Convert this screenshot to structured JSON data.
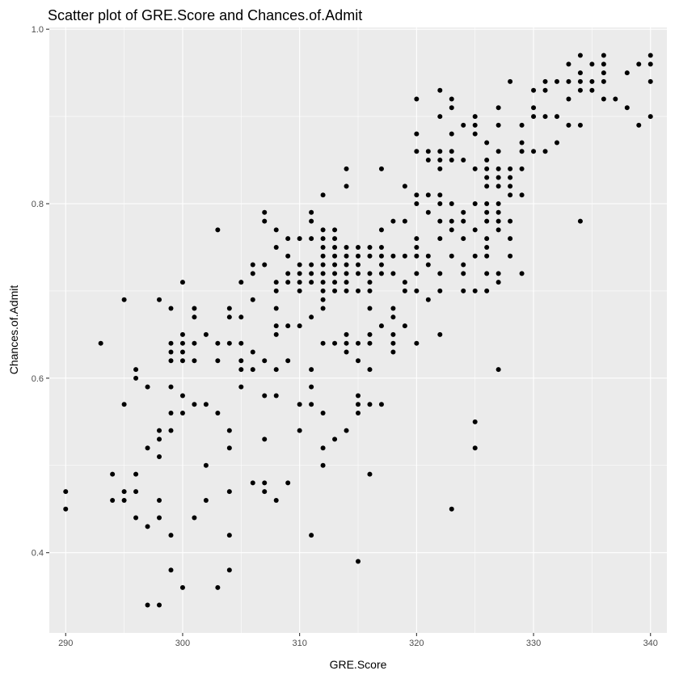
{
  "chart_data": {
    "type": "scatter",
    "title": "Scatter plot of GRE.Score and Chances.of.Admit",
    "xlabel": "GRE.Score",
    "ylabel": "Chances.of.Admit",
    "xlim": [
      288.6,
      341.4
    ],
    "ylim": [
      0.308,
      1.002
    ],
    "x_ticks": [
      290,
      300,
      310,
      320,
      330,
      340
    ],
    "x_tick_labels": [
      "290",
      "300",
      "310",
      "320",
      "330",
      "340"
    ],
    "y_ticks": [
      0.4,
      0.6,
      0.8,
      1.0
    ],
    "y_tick_labels": [
      "0.4",
      "0.6",
      "0.8",
      "1.0"
    ],
    "grid": true,
    "colors": {
      "panel": "#ebebeb",
      "grid": "#ffffff",
      "point": "#000000",
      "axis_text": "#4d4d4d"
    },
    "points": [
      [
        290,
        0.47
      ],
      [
        290,
        0.45
      ],
      [
        293,
        0.64
      ],
      [
        294,
        0.49
      ],
      [
        294,
        0.46
      ],
      [
        295,
        0.69
      ],
      [
        295,
        0.57
      ],
      [
        295,
        0.47
      ],
      [
        295,
        0.46
      ],
      [
        296,
        0.61
      ],
      [
        296,
        0.6
      ],
      [
        296,
        0.49
      ],
      [
        296,
        0.47
      ],
      [
        296,
        0.44
      ],
      [
        297,
        0.59
      ],
      [
        297,
        0.52
      ],
      [
        297,
        0.43
      ],
      [
        297,
        0.34
      ],
      [
        298,
        0.69
      ],
      [
        298,
        0.54
      ],
      [
        298,
        0.53
      ],
      [
        298,
        0.51
      ],
      [
        298,
        0.46
      ],
      [
        298,
        0.44
      ],
      [
        298,
        0.34
      ],
      [
        299,
        0.68
      ],
      [
        299,
        0.64
      ],
      [
        299,
        0.63
      ],
      [
        299,
        0.62
      ],
      [
        299,
        0.59
      ],
      [
        299,
        0.56
      ],
      [
        299,
        0.54
      ],
      [
        299,
        0.42
      ],
      [
        299,
        0.38
      ],
      [
        300,
        0.71
      ],
      [
        300,
        0.65
      ],
      [
        300,
        0.64
      ],
      [
        300,
        0.63
      ],
      [
        300,
        0.62
      ],
      [
        300,
        0.58
      ],
      [
        300,
        0.56
      ],
      [
        300,
        0.36
      ],
      [
        301,
        0.68
      ],
      [
        301,
        0.67
      ],
      [
        301,
        0.64
      ],
      [
        301,
        0.62
      ],
      [
        301,
        0.57
      ],
      [
        301,
        0.44
      ],
      [
        302,
        0.65
      ],
      [
        302,
        0.57
      ],
      [
        302,
        0.5
      ],
      [
        302,
        0.46
      ],
      [
        303,
        0.77
      ],
      [
        303,
        0.64
      ],
      [
        303,
        0.62
      ],
      [
        303,
        0.56
      ],
      [
        303,
        0.36
      ],
      [
        304,
        0.68
      ],
      [
        304,
        0.67
      ],
      [
        304,
        0.64
      ],
      [
        304,
        0.54
      ],
      [
        304,
        0.52
      ],
      [
        304,
        0.47
      ],
      [
        304,
        0.42
      ],
      [
        304,
        0.38
      ],
      [
        305,
        0.71
      ],
      [
        305,
        0.67
      ],
      [
        305,
        0.64
      ],
      [
        305,
        0.62
      ],
      [
        305,
        0.61
      ],
      [
        305,
        0.59
      ],
      [
        306,
        0.73
      ],
      [
        306,
        0.72
      ],
      [
        306,
        0.69
      ],
      [
        306,
        0.63
      ],
      [
        306,
        0.61
      ],
      [
        306,
        0.48
      ],
      [
        307,
        0.79
      ],
      [
        307,
        0.78
      ],
      [
        307,
        0.73
      ],
      [
        307,
        0.62
      ],
      [
        307,
        0.58
      ],
      [
        307,
        0.53
      ],
      [
        307,
        0.48
      ],
      [
        307,
        0.47
      ],
      [
        308,
        0.77
      ],
      [
        308,
        0.75
      ],
      [
        308,
        0.71
      ],
      [
        308,
        0.7
      ],
      [
        308,
        0.68
      ],
      [
        308,
        0.66
      ],
      [
        308,
        0.65
      ],
      [
        308,
        0.61
      ],
      [
        308,
        0.58
      ],
      [
        308,
        0.46
      ],
      [
        309,
        0.76
      ],
      [
        309,
        0.74
      ],
      [
        309,
        0.72
      ],
      [
        309,
        0.71
      ],
      [
        309,
        0.66
      ],
      [
        309,
        0.62
      ],
      [
        309,
        0.48
      ],
      [
        310,
        0.76
      ],
      [
        310,
        0.73
      ],
      [
        310,
        0.72
      ],
      [
        310,
        0.71
      ],
      [
        310,
        0.7
      ],
      [
        310,
        0.66
      ],
      [
        310,
        0.57
      ],
      [
        310,
        0.54
      ],
      [
        311,
        0.79
      ],
      [
        311,
        0.78
      ],
      [
        311,
        0.76
      ],
      [
        311,
        0.73
      ],
      [
        311,
        0.72
      ],
      [
        311,
        0.71
      ],
      [
        311,
        0.67
      ],
      [
        311,
        0.61
      ],
      [
        311,
        0.59
      ],
      [
        311,
        0.57
      ],
      [
        311,
        0.42
      ],
      [
        312,
        0.81
      ],
      [
        312,
        0.77
      ],
      [
        312,
        0.76
      ],
      [
        312,
        0.75
      ],
      [
        312,
        0.74
      ],
      [
        312,
        0.73
      ],
      [
        312,
        0.72
      ],
      [
        312,
        0.71
      ],
      [
        312,
        0.7
      ],
      [
        312,
        0.69
      ],
      [
        312,
        0.68
      ],
      [
        312,
        0.64
      ],
      [
        312,
        0.56
      ],
      [
        312,
        0.52
      ],
      [
        312,
        0.5
      ],
      [
        313,
        0.77
      ],
      [
        313,
        0.76
      ],
      [
        313,
        0.75
      ],
      [
        313,
        0.74
      ],
      [
        313,
        0.73
      ],
      [
        313,
        0.72
      ],
      [
        313,
        0.71
      ],
      [
        313,
        0.7
      ],
      [
        313,
        0.64
      ],
      [
        313,
        0.53
      ],
      [
        314,
        0.84
      ],
      [
        314,
        0.82
      ],
      [
        314,
        0.75
      ],
      [
        314,
        0.74
      ],
      [
        314,
        0.73
      ],
      [
        314,
        0.72
      ],
      [
        314,
        0.71
      ],
      [
        314,
        0.7
      ],
      [
        314,
        0.65
      ],
      [
        314,
        0.64
      ],
      [
        314,
        0.63
      ],
      [
        314,
        0.54
      ],
      [
        315,
        0.75
      ],
      [
        315,
        0.74
      ],
      [
        315,
        0.73
      ],
      [
        315,
        0.72
      ],
      [
        315,
        0.7
      ],
      [
        315,
        0.64
      ],
      [
        315,
        0.62
      ],
      [
        315,
        0.58
      ],
      [
        315,
        0.57
      ],
      [
        315,
        0.56
      ],
      [
        315,
        0.39
      ],
      [
        316,
        0.75
      ],
      [
        316,
        0.74
      ],
      [
        316,
        0.72
      ],
      [
        316,
        0.71
      ],
      [
        316,
        0.7
      ],
      [
        316,
        0.68
      ],
      [
        316,
        0.65
      ],
      [
        316,
        0.64
      ],
      [
        316,
        0.61
      ],
      [
        316,
        0.57
      ],
      [
        316,
        0.49
      ],
      [
        317,
        0.84
      ],
      [
        317,
        0.77
      ],
      [
        317,
        0.75
      ],
      [
        317,
        0.74
      ],
      [
        317,
        0.73
      ],
      [
        317,
        0.72
      ],
      [
        317,
        0.66
      ],
      [
        317,
        0.57
      ],
      [
        318,
        0.78
      ],
      [
        318,
        0.74
      ],
      [
        318,
        0.72
      ],
      [
        318,
        0.68
      ],
      [
        318,
        0.67
      ],
      [
        318,
        0.65
      ],
      [
        318,
        0.64
      ],
      [
        318,
        0.63
      ],
      [
        319,
        0.82
      ],
      [
        319,
        0.78
      ],
      [
        319,
        0.74
      ],
      [
        319,
        0.71
      ],
      [
        319,
        0.7
      ],
      [
        319,
        0.66
      ],
      [
        320,
        0.92
      ],
      [
        320,
        0.88
      ],
      [
        320,
        0.86
      ],
      [
        320,
        0.81
      ],
      [
        320,
        0.8
      ],
      [
        320,
        0.76
      ],
      [
        320,
        0.75
      ],
      [
        320,
        0.74
      ],
      [
        320,
        0.72
      ],
      [
        320,
        0.7
      ],
      [
        320,
        0.64
      ],
      [
        321,
        0.86
      ],
      [
        321,
        0.85
      ],
      [
        321,
        0.81
      ],
      [
        321,
        0.79
      ],
      [
        321,
        0.74
      ],
      [
        321,
        0.73
      ],
      [
        321,
        0.69
      ],
      [
        322,
        0.93
      ],
      [
        322,
        0.9
      ],
      [
        322,
        0.86
      ],
      [
        322,
        0.85
      ],
      [
        322,
        0.84
      ],
      [
        322,
        0.81
      ],
      [
        322,
        0.8
      ],
      [
        322,
        0.78
      ],
      [
        322,
        0.76
      ],
      [
        322,
        0.72
      ],
      [
        322,
        0.7
      ],
      [
        322,
        0.65
      ],
      [
        323,
        0.92
      ],
      [
        323,
        0.91
      ],
      [
        323,
        0.88
      ],
      [
        323,
        0.86
      ],
      [
        323,
        0.85
      ],
      [
        323,
        0.8
      ],
      [
        323,
        0.78
      ],
      [
        323,
        0.77
      ],
      [
        323,
        0.74
      ],
      [
        323,
        0.45
      ],
      [
        324,
        0.89
      ],
      [
        324,
        0.85
      ],
      [
        324,
        0.79
      ],
      [
        324,
        0.78
      ],
      [
        324,
        0.76
      ],
      [
        324,
        0.73
      ],
      [
        324,
        0.72
      ],
      [
        324,
        0.7
      ],
      [
        325,
        0.9
      ],
      [
        325,
        0.89
      ],
      [
        325,
        0.88
      ],
      [
        325,
        0.84
      ],
      [
        325,
        0.8
      ],
      [
        325,
        0.77
      ],
      [
        325,
        0.74
      ],
      [
        325,
        0.7
      ],
      [
        325,
        0.55
      ],
      [
        325,
        0.52
      ],
      [
        326,
        0.87
      ],
      [
        326,
        0.85
      ],
      [
        326,
        0.84
      ],
      [
        326,
        0.83
      ],
      [
        326,
        0.82
      ],
      [
        326,
        0.8
      ],
      [
        326,
        0.79
      ],
      [
        326,
        0.78
      ],
      [
        326,
        0.76
      ],
      [
        326,
        0.75
      ],
      [
        326,
        0.74
      ],
      [
        326,
        0.72
      ],
      [
        326,
        0.7
      ],
      [
        327,
        0.91
      ],
      [
        327,
        0.89
      ],
      [
        327,
        0.86
      ],
      [
        327,
        0.84
      ],
      [
        327,
        0.83
      ],
      [
        327,
        0.82
      ],
      [
        327,
        0.8
      ],
      [
        327,
        0.79
      ],
      [
        327,
        0.78
      ],
      [
        327,
        0.77
      ],
      [
        327,
        0.72
      ],
      [
        327,
        0.71
      ],
      [
        327,
        0.61
      ],
      [
        328,
        0.94
      ],
      [
        328,
        0.84
      ],
      [
        328,
        0.83
      ],
      [
        328,
        0.82
      ],
      [
        328,
        0.81
      ],
      [
        328,
        0.78
      ],
      [
        328,
        0.76
      ],
      [
        328,
        0.74
      ],
      [
        329,
        0.89
      ],
      [
        329,
        0.87
      ],
      [
        329,
        0.86
      ],
      [
        329,
        0.84
      ],
      [
        329,
        0.81
      ],
      [
        329,
        0.72
      ],
      [
        330,
        0.93
      ],
      [
        330,
        0.91
      ],
      [
        330,
        0.9
      ],
      [
        330,
        0.86
      ],
      [
        331,
        0.94
      ],
      [
        331,
        0.93
      ],
      [
        331,
        0.9
      ],
      [
        331,
        0.86
      ],
      [
        332,
        0.94
      ],
      [
        332,
        0.9
      ],
      [
        332,
        0.87
      ],
      [
        333,
        0.96
      ],
      [
        333,
        0.94
      ],
      [
        333,
        0.92
      ],
      [
        333,
        0.89
      ],
      [
        334,
        0.97
      ],
      [
        334,
        0.95
      ],
      [
        334,
        0.94
      ],
      [
        334,
        0.93
      ],
      [
        334,
        0.89
      ],
      [
        334,
        0.78
      ],
      [
        335,
        0.96
      ],
      [
        335,
        0.94
      ],
      [
        335,
        0.93
      ],
      [
        336,
        0.97
      ],
      [
        336,
        0.96
      ],
      [
        336,
        0.95
      ],
      [
        336,
        0.94
      ],
      [
        336,
        0.92
      ],
      [
        337,
        0.92
      ],
      [
        338,
        0.95
      ],
      [
        338,
        0.91
      ],
      [
        339,
        0.96
      ],
      [
        339,
        0.89
      ],
      [
        340,
        0.97
      ],
      [
        340,
        0.96
      ],
      [
        340,
        0.94
      ],
      [
        340,
        0.9
      ]
    ]
  }
}
